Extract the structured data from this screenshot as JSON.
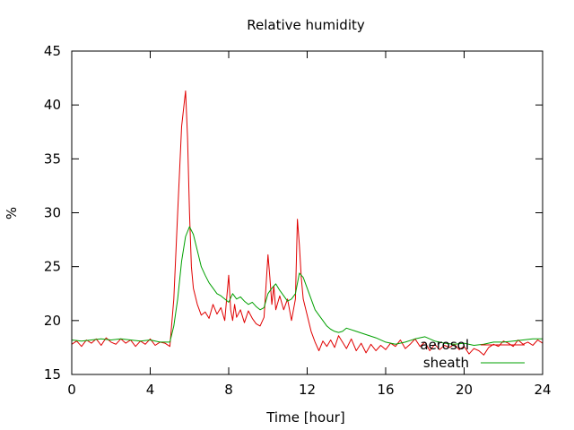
{
  "chart_data": {
    "type": "line",
    "title": "Relative humidity",
    "xlabel": "Time [hour]",
    "ylabel": "%",
    "xlim": [
      0,
      24
    ],
    "ylim": [
      15,
      45
    ],
    "x_ticks": [
      0,
      4,
      8,
      12,
      16,
      20,
      24
    ],
    "y_ticks": [
      15,
      20,
      25,
      30,
      35,
      40,
      45
    ],
    "x_tick_labels": [
      "0",
      "4",
      "8",
      "12",
      "16",
      "20",
      "24"
    ],
    "y_tick_labels": [
      "15",
      "20",
      "25",
      "30",
      "35",
      "40",
      "45"
    ],
    "grid": false,
    "legend_position": "bottom-right",
    "series": [
      {
        "name": "aerosol",
        "color": "#e00000",
        "x": [
          0,
          0.25,
          0.5,
          0.75,
          1,
          1.25,
          1.5,
          1.75,
          2,
          2.25,
          2.5,
          2.75,
          3,
          3.25,
          3.5,
          3.75,
          4,
          4.25,
          4.5,
          4.75,
          5,
          5.2,
          5.4,
          5.6,
          5.8,
          5.9,
          6,
          6.1,
          6.2,
          6.4,
          6.6,
          6.8,
          7,
          7.2,
          7.4,
          7.6,
          7.8,
          8,
          8.1,
          8.2,
          8.3,
          8.4,
          8.6,
          8.8,
          9,
          9.2,
          9.4,
          9.6,
          9.8,
          10,
          10.1,
          10.2,
          10.3,
          10.4,
          10.6,
          10.8,
          11,
          11.2,
          11.4,
          11.5,
          11.6,
          11.7,
          11.8,
          12,
          12.2,
          12.4,
          12.6,
          12.8,
          13,
          13.2,
          13.4,
          13.6,
          13.8,
          14,
          14.25,
          14.5,
          14.75,
          15,
          15.25,
          15.5,
          15.75,
          16,
          16.25,
          16.5,
          16.75,
          17,
          17.25,
          17.5,
          17.75,
          18,
          18.25,
          18.5,
          18.75,
          19,
          19.25,
          19.5,
          19.75,
          20,
          20.25,
          20.5,
          20.75,
          21,
          21.25,
          21.5,
          21.75,
          22,
          22.25,
          22.5,
          22.75,
          23,
          23.25,
          23.5,
          23.75,
          24
        ],
        "y": [
          17.8,
          18.1,
          17.6,
          18.2,
          17.9,
          18.3,
          17.7,
          18.4,
          18.0,
          17.8,
          18.3,
          17.9,
          18.2,
          17.6,
          18.1,
          17.8,
          18.3,
          17.7,
          18.0,
          17.9,
          17.6,
          22.0,
          30.0,
          38.0,
          41.3,
          37.0,
          30.0,
          25.0,
          23.0,
          21.5,
          20.5,
          20.8,
          20.2,
          21.5,
          20.6,
          21.2,
          20.0,
          24.2,
          21.0,
          20.0,
          21.5,
          20.3,
          21.0,
          19.8,
          20.9,
          20.2,
          19.7,
          19.5,
          20.3,
          26.1,
          24.0,
          21.5,
          23.2,
          21.0,
          22.3,
          21.0,
          22.0,
          20.0,
          22.0,
          29.4,
          27.0,
          24.0,
          22.0,
          20.5,
          19.0,
          18.0,
          17.2,
          18.1,
          17.6,
          18.2,
          17.5,
          18.6,
          18.0,
          17.4,
          18.3,
          17.2,
          17.9,
          17.0,
          17.8,
          17.2,
          17.7,
          17.3,
          17.9,
          17.6,
          18.2,
          17.4,
          17.8,
          18.3,
          17.6,
          18.0,
          17.2,
          17.8,
          17.3,
          17.7,
          17.5,
          17.8,
          17.3,
          17.6,
          16.9,
          17.4,
          17.2,
          16.8,
          17.5,
          17.8,
          17.6,
          18.1,
          17.9,
          17.6,
          18.2,
          17.8,
          18.0,
          17.7,
          18.2,
          17.9
        ]
      },
      {
        "name": "sheath",
        "color": "#00a000",
        "x": [
          0,
          0.5,
          1,
          1.5,
          2,
          2.5,
          3,
          3.5,
          4,
          4.5,
          5,
          5.2,
          5.4,
          5.6,
          5.8,
          6,
          6.2,
          6.4,
          6.6,
          6.8,
          7,
          7.2,
          7.4,
          7.6,
          7.8,
          8,
          8.2,
          8.4,
          8.6,
          8.8,
          9,
          9.2,
          9.4,
          9.6,
          9.8,
          10,
          10.2,
          10.4,
          10.6,
          10.8,
          11,
          11.2,
          11.4,
          11.6,
          11.8,
          12,
          12.2,
          12.4,
          12.6,
          12.8,
          13,
          13.2,
          13.4,
          13.6,
          13.8,
          14,
          14.5,
          15,
          15.5,
          16,
          16.5,
          17,
          17.5,
          18,
          18.5,
          19,
          19.5,
          20,
          20.5,
          21,
          21.5,
          22,
          22.5,
          23,
          23.5,
          24
        ],
        "y": [
          18.2,
          18.1,
          18.2,
          18.3,
          18.2,
          18.3,
          18.2,
          18.1,
          18.2,
          18.0,
          18.0,
          19.5,
          22.0,
          25.5,
          27.8,
          28.7,
          28.0,
          26.5,
          25.0,
          24.2,
          23.5,
          23.0,
          22.5,
          22.3,
          22.0,
          21.7,
          22.5,
          22.0,
          22.2,
          21.8,
          21.5,
          21.7,
          21.3,
          21.0,
          21.2,
          22.5,
          23.0,
          23.4,
          22.8,
          22.3,
          21.8,
          22.0,
          22.5,
          24.4,
          24.0,
          23.0,
          22.0,
          21.0,
          20.5,
          20.0,
          19.5,
          19.2,
          19.0,
          18.9,
          19.0,
          19.3,
          19.0,
          18.7,
          18.4,
          18.0,
          17.8,
          18.0,
          18.3,
          18.5,
          18.1,
          17.9,
          17.8,
          17.9,
          17.7,
          17.8,
          18.0,
          18.0,
          18.1,
          18.2,
          18.3,
          18.3
        ]
      }
    ]
  }
}
